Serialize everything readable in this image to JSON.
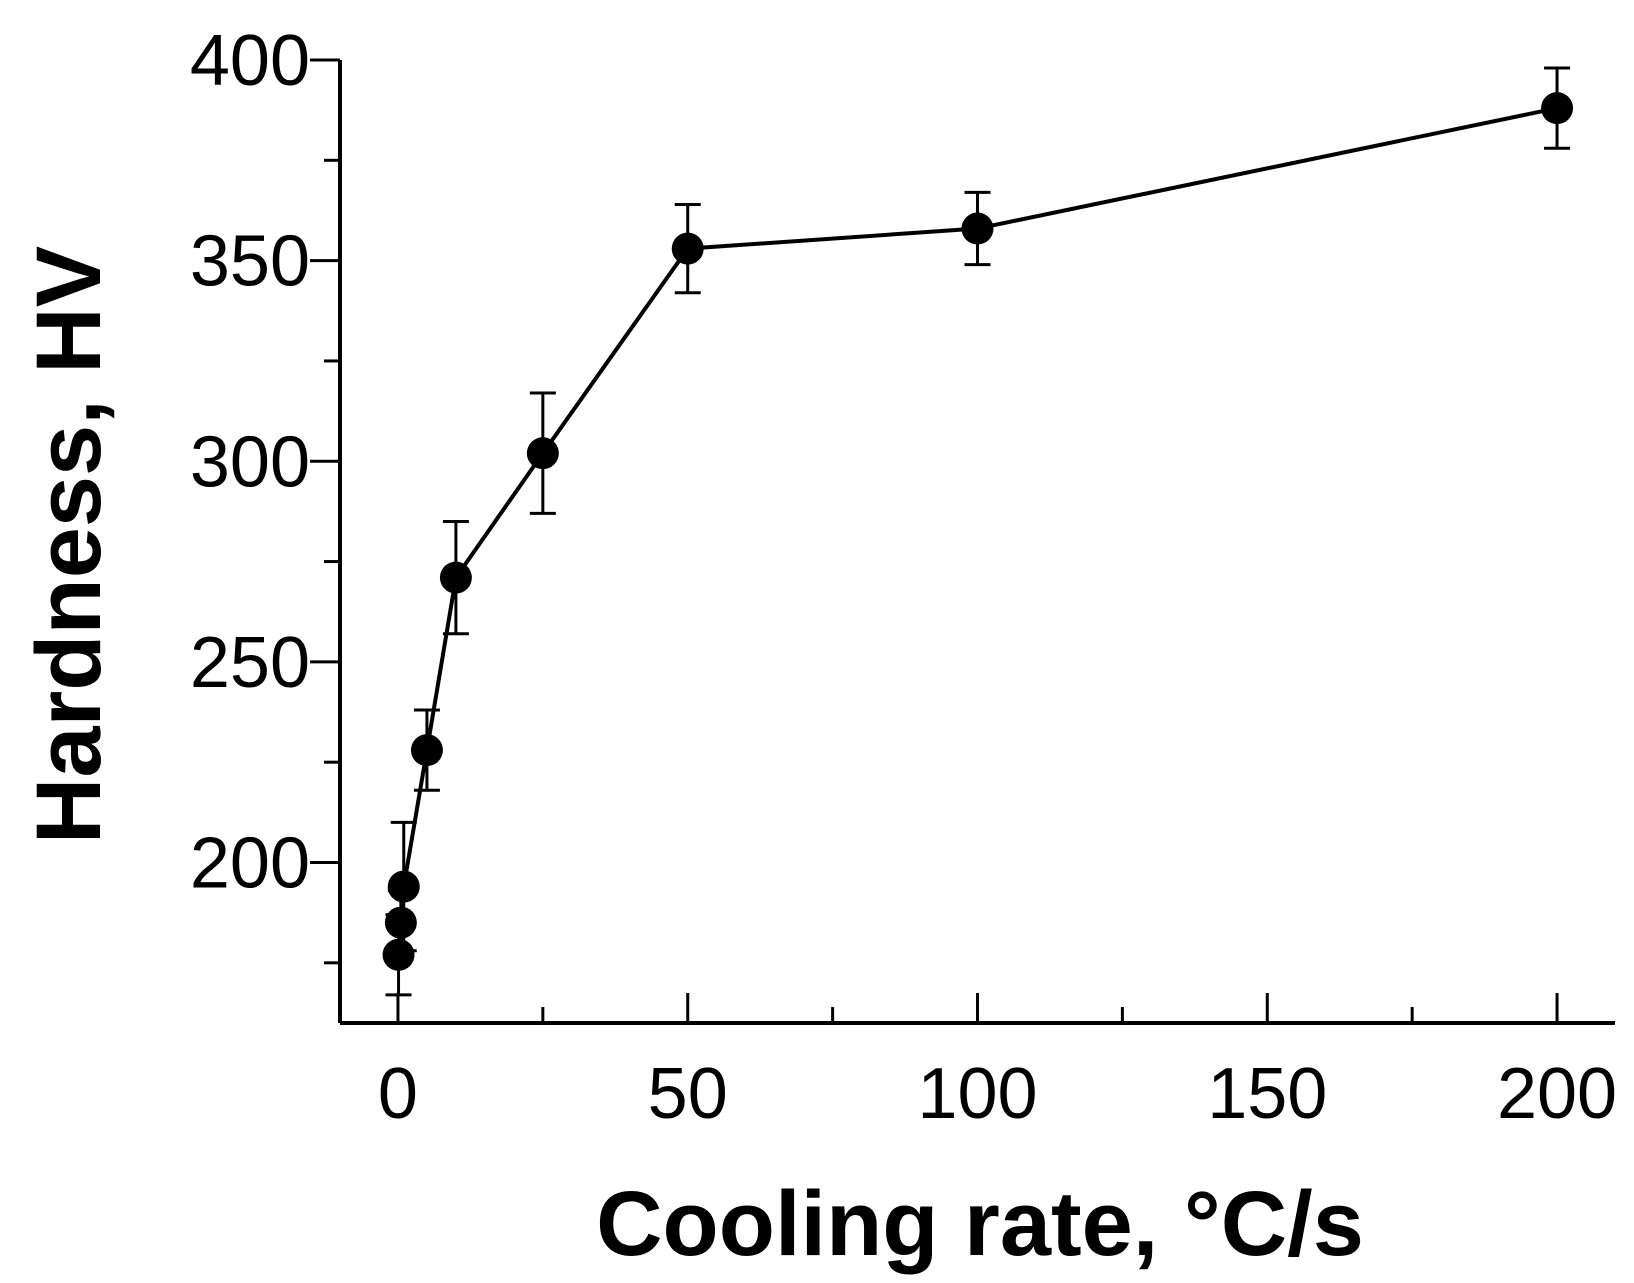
{
  "chart_data": {
    "type": "line",
    "title": "",
    "xlabel": "Cooling rate, °C/s",
    "ylabel": "Hardness, HV",
    "xlim": [
      -10,
      210
    ],
    "ylim": [
      160,
      400
    ],
    "x_ticks": [
      0,
      50,
      100,
      150,
      200
    ],
    "x_tick_labels": [
      "0",
      "50",
      "100",
      "150",
      "200"
    ],
    "x_minor_ticks": [
      25,
      75,
      125,
      175
    ],
    "y_ticks": [
      200,
      250,
      300,
      350,
      400
    ],
    "y_tick_labels": [
      "200",
      "250",
      "300",
      "350",
      "400"
    ],
    "y_minor_ticks": [
      175,
      225,
      275,
      325,
      375
    ],
    "grid": false,
    "series": [
      {
        "name": "Hardness",
        "marker": "filled-circle",
        "color": "#000000",
        "x": [
          0.1,
          0.5,
          1,
          5,
          10,
          25,
          50,
          100,
          200
        ],
        "y": [
          177,
          185,
          194,
          228,
          271,
          302,
          353,
          358,
          388
        ],
        "yerr": [
          10,
          8,
          16,
          10,
          14,
          15,
          11,
          9,
          10
        ]
      }
    ]
  }
}
